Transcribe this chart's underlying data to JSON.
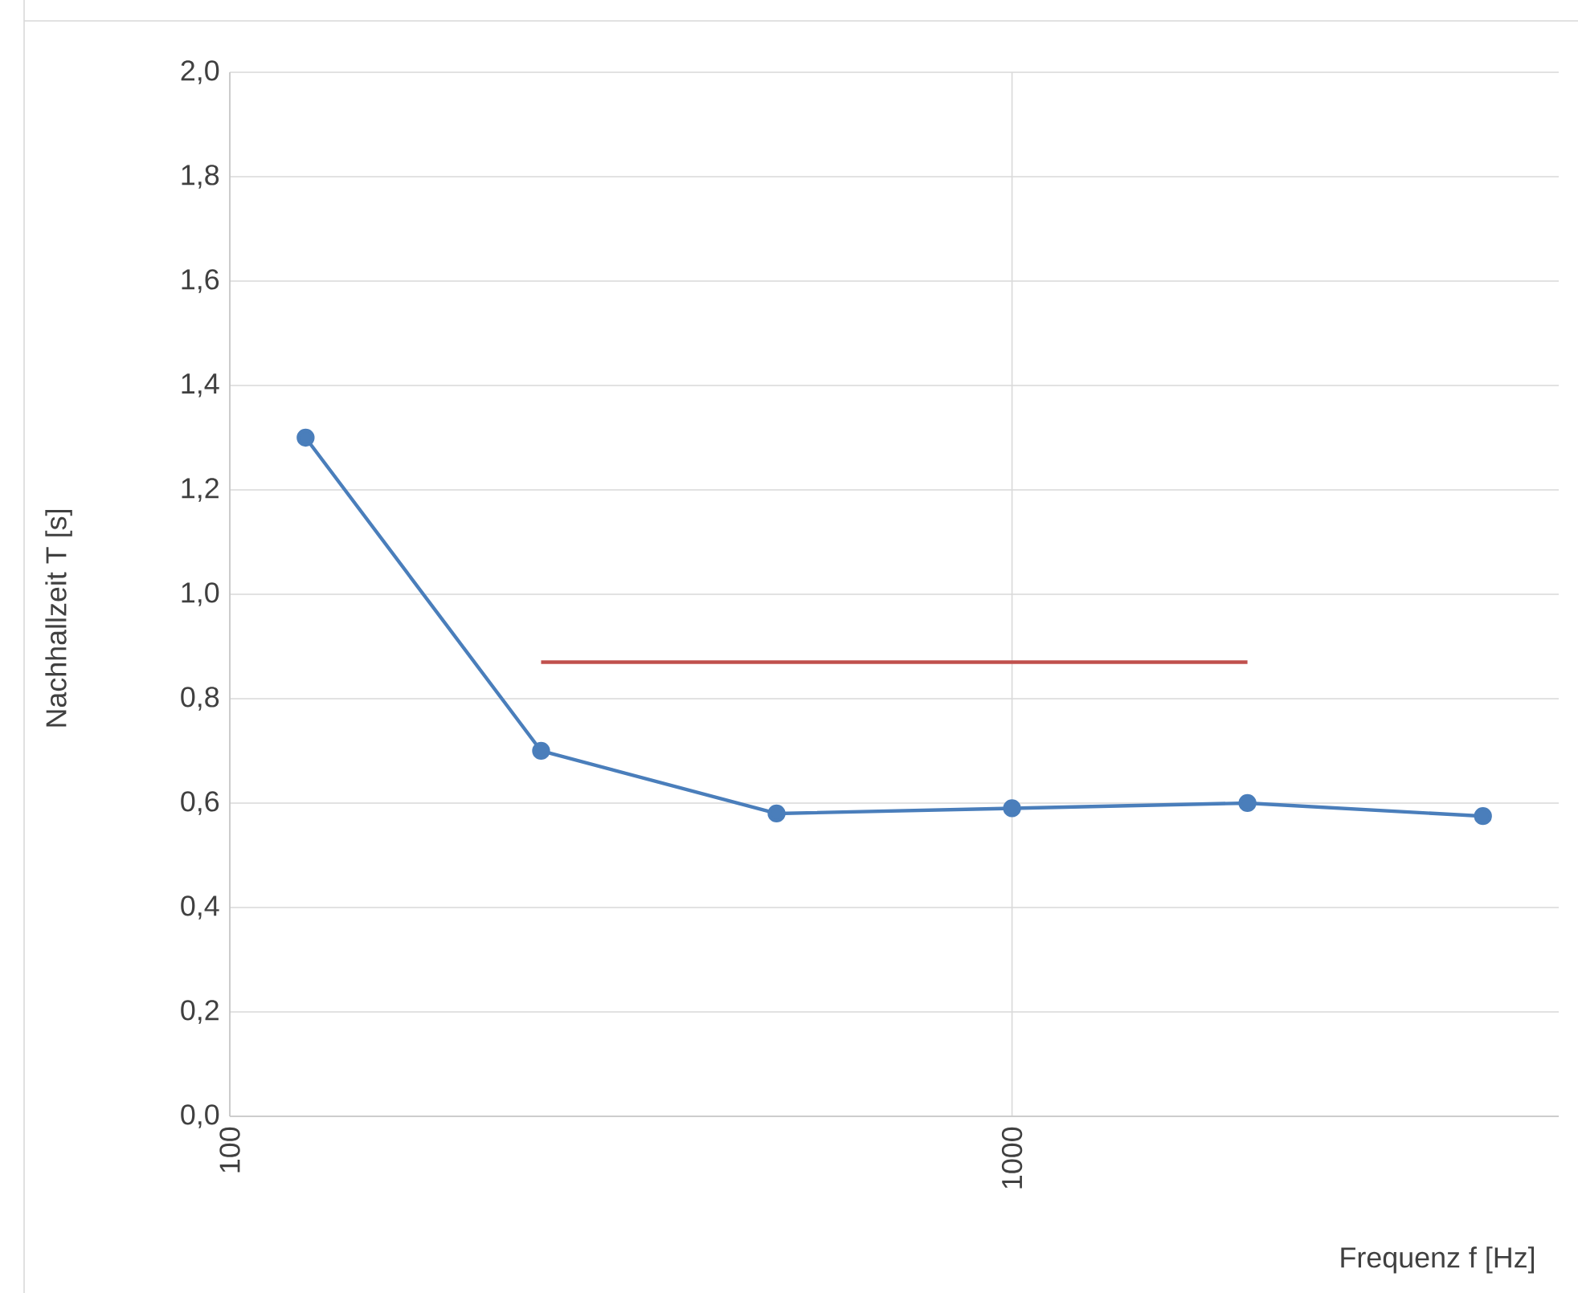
{
  "chart_data": {
    "type": "line",
    "xlabel": "Frequenz f [Hz]",
    "ylabel": "Nachhallzeit T [s]",
    "log": "x",
    "xlim": [
      100,
      5000
    ],
    "xticks": [
      100,
      1000
    ],
    "ylim": [
      0,
      2
    ],
    "yticks": [
      {
        "value": 0,
        "label": "0,0"
      },
      {
        "value": 0.2,
        "label": "0,2"
      },
      {
        "value": 0.4,
        "label": "0,4"
      },
      {
        "value": 0.6,
        "label": "0,6"
      },
      {
        "value": 0.8,
        "label": "0,8"
      },
      {
        "value": 1.0,
        "label": "1,0"
      },
      {
        "value": 1.2,
        "label": "1,2"
      },
      {
        "value": 1.4,
        "label": "1,4"
      },
      {
        "value": 1.6,
        "label": "1,6"
      },
      {
        "value": 1.8,
        "label": "1,8"
      },
      {
        "value": 2.0,
        "label": "2,0"
      }
    ],
    "grid": true,
    "marker": "circle",
    "series": [
      {
        "color": "#4a7ebb",
        "x": [
          125,
          250,
          500,
          1000,
          2000,
          4000
        ],
        "values": [
          1.3,
          0.7,
          0.58,
          0.59,
          0.6,
          0.575
        ]
      },
      {
        "color": "#c0504d",
        "marker": "none",
        "x": [
          250,
          2000
        ],
        "values": [
          0.87,
          0.87
        ]
      }
    ]
  }
}
